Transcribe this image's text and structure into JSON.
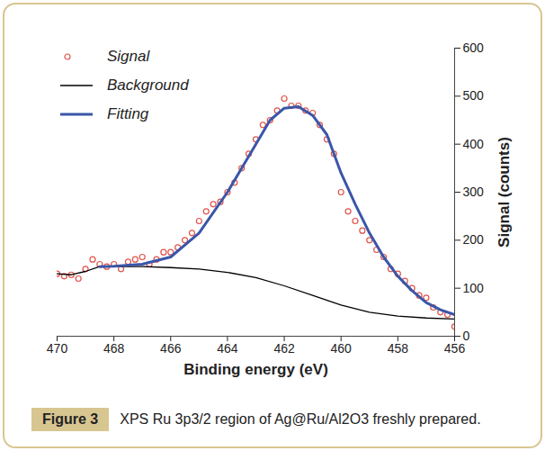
{
  "chart_data": {
    "type": "scatter",
    "xlabel": "Binding energy (eV)",
    "ylabel": "Signal (counts)",
    "caption_label": "Figure 3",
    "caption": "XPS Ru 3p3/2 region of Ag@Ru/Al2O3 freshly prepared.",
    "xlim": [
      470,
      456
    ],
    "xticks": [
      470,
      468,
      466,
      464,
      462,
      460,
      458,
      456
    ],
    "ylim": [
      0,
      600
    ],
    "yticks": [
      0,
      100,
      200,
      300,
      400,
      500,
      600
    ],
    "grid": false,
    "legend": "top-left",
    "series": [
      {
        "name": "Signal",
        "type": "scatter",
        "marker": "circle",
        "color": "#e0524a",
        "x": [
          470,
          469.75,
          469.5,
          469.25,
          469,
          468.75,
          468.5,
          468.25,
          468,
          467.75,
          467.5,
          467.25,
          467,
          466.75,
          466.5,
          466.25,
          466,
          465.75,
          465.5,
          465.25,
          465,
          464.75,
          464.5,
          464.25,
          464,
          463.75,
          463.5,
          463.25,
          463,
          462.75,
          462.5,
          462.25,
          462,
          461.75,
          461.5,
          461.25,
          461,
          460.75,
          460.5,
          460.25,
          460,
          459.75,
          459.5,
          459.25,
          459,
          458.75,
          458.5,
          458.25,
          458,
          457.75,
          457.5,
          457.25,
          457,
          456.75,
          456.5,
          456.25,
          456
        ],
        "values": [
          130,
          125,
          128,
          120,
          140,
          160,
          150,
          145,
          150,
          140,
          155,
          160,
          165,
          150,
          160,
          175,
          175,
          185,
          200,
          215,
          240,
          260,
          275,
          280,
          300,
          320,
          350,
          380,
          410,
          440,
          450,
          470,
          495,
          480,
          480,
          470,
          465,
          440,
          410,
          380,
          300,
          260,
          240,
          220,
          200,
          180,
          165,
          140,
          130,
          115,
          100,
          85,
          80,
          60,
          50,
          45,
          20
        ]
      },
      {
        "name": "Background",
        "type": "line",
        "line_style": "solid",
        "color": "#000000",
        "x": [
          470,
          469.5,
          469,
          468.5,
          468,
          467,
          466,
          465,
          464,
          463,
          462,
          461,
          460,
          459,
          458,
          457,
          456
        ],
        "values": [
          130,
          128,
          135,
          145,
          145,
          145,
          143,
          140,
          133,
          122,
          105,
          85,
          65,
          50,
          42,
          38,
          36
        ]
      },
      {
        "name": "Fitting",
        "type": "line",
        "line_style": "solid",
        "color": "#3a56a8",
        "x": [
          468.5,
          468,
          467,
          466,
          465,
          464,
          463,
          462.5,
          462,
          461.5,
          461,
          460.5,
          460,
          459.5,
          459,
          458.5,
          458,
          457.5,
          457,
          456.5,
          456
        ],
        "values": [
          145,
          146,
          150,
          165,
          215,
          300,
          400,
          450,
          475,
          478,
          460,
          420,
          340,
          275,
          215,
          165,
          125,
          95,
          70,
          55,
          45
        ]
      }
    ]
  }
}
